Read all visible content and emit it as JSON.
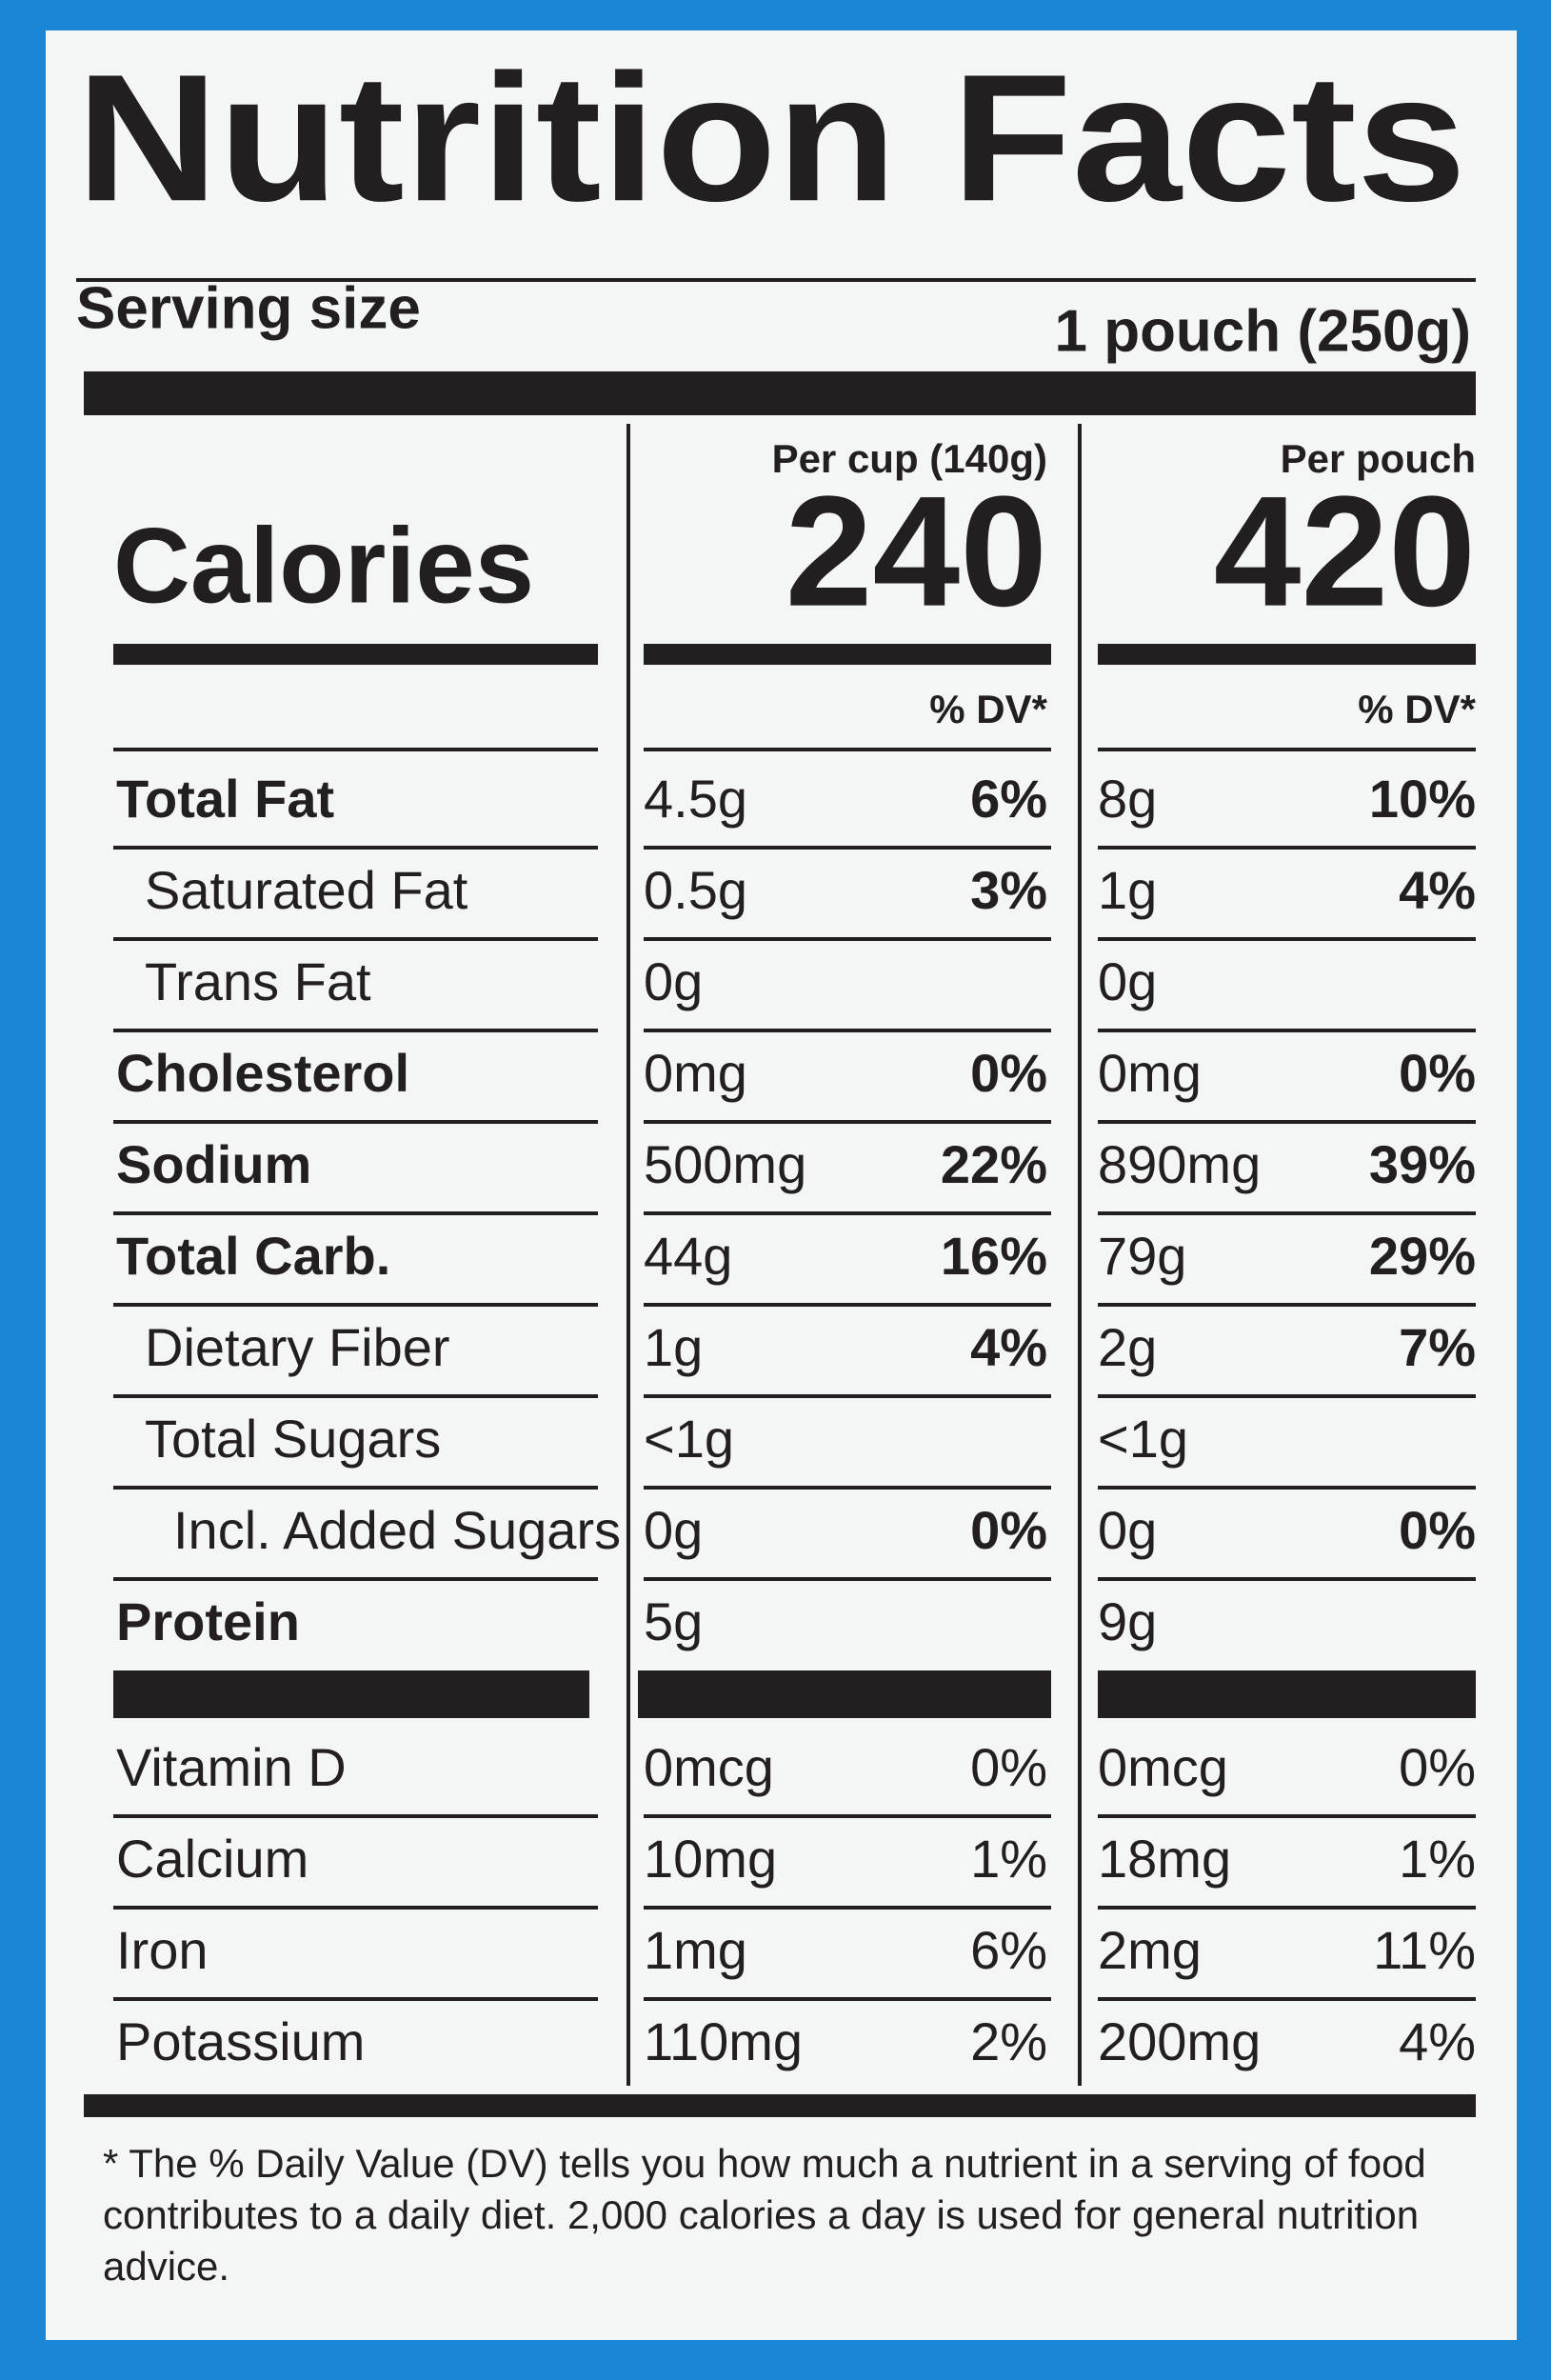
{
  "title": "Nutrition Facts",
  "serving": {
    "label": "Serving size",
    "value": "1 pouch (250g)"
  },
  "calories": {
    "label": "Calories",
    "columns": [
      {
        "header": "Per cup (140g)",
        "value": "240",
        "dv_header": "% DV*"
      },
      {
        "header": "Per pouch",
        "value": "420",
        "dv_header": "% DV*"
      }
    ]
  },
  "nutrients": [
    {
      "name": "Total Fat",
      "bold": true,
      "indent": 0,
      "per_cup": {
        "amount": "4.5g",
        "dv": "6%"
      },
      "per_pouch": {
        "amount": "8g",
        "dv": "10%"
      }
    },
    {
      "name": "Saturated Fat",
      "bold": false,
      "indent": 1,
      "per_cup": {
        "amount": "0.5g",
        "dv": "3%"
      },
      "per_pouch": {
        "amount": "1g",
        "dv": "4%"
      }
    },
    {
      "name": "Trans Fat",
      "bold": false,
      "indent": 1,
      "per_cup": {
        "amount": "0g",
        "dv": null
      },
      "per_pouch": {
        "amount": "0g",
        "dv": null
      }
    },
    {
      "name": "Cholesterol",
      "bold": true,
      "indent": 0,
      "per_cup": {
        "amount": "0mg",
        "dv": "0%"
      },
      "per_pouch": {
        "amount": "0mg",
        "dv": "0%"
      }
    },
    {
      "name": "Sodium",
      "bold": true,
      "indent": 0,
      "per_cup": {
        "amount": "500mg",
        "dv": "22%"
      },
      "per_pouch": {
        "amount": "890mg",
        "dv": "39%"
      }
    },
    {
      "name": "Total Carb.",
      "bold": true,
      "indent": 0,
      "per_cup": {
        "amount": "44g",
        "dv": "16%"
      },
      "per_pouch": {
        "amount": "79g",
        "dv": "29%"
      }
    },
    {
      "name": "Dietary Fiber",
      "bold": false,
      "indent": 1,
      "per_cup": {
        "amount": "1g",
        "dv": "4%"
      },
      "per_pouch": {
        "amount": "2g",
        "dv": "7%"
      }
    },
    {
      "name": "Total Sugars",
      "bold": false,
      "indent": 1,
      "per_cup": {
        "amount": "<1g",
        "dv": null
      },
      "per_pouch": {
        "amount": "<1g",
        "dv": null
      }
    },
    {
      "name": "Incl. Added Sugars",
      "bold": false,
      "indent": 2,
      "per_cup": {
        "amount": "0g",
        "dv": "0%"
      },
      "per_pouch": {
        "amount": "0g",
        "dv": "0%"
      }
    },
    {
      "name": "Protein",
      "bold": true,
      "indent": 0,
      "per_cup": {
        "amount": "5g",
        "dv": null
      },
      "per_pouch": {
        "amount": "9g",
        "dv": null
      }
    }
  ],
  "vitamins": [
    {
      "name": "Vitamin D",
      "per_cup": {
        "amount": "0mcg",
        "dv": "0%"
      },
      "per_pouch": {
        "amount": "0mcg",
        "dv": "0%"
      }
    },
    {
      "name": "Calcium",
      "per_cup": {
        "amount": "10mg",
        "dv": "1%"
      },
      "per_pouch": {
        "amount": "18mg",
        "dv": "1%"
      }
    },
    {
      "name": "Iron",
      "per_cup": {
        "amount": "1mg",
        "dv": "6%"
      },
      "per_pouch": {
        "amount": "2mg",
        "dv": "11%"
      }
    },
    {
      "name": "Potassium",
      "per_cup": {
        "amount": "110mg",
        "dv": "2%"
      },
      "per_pouch": {
        "amount": "200mg",
        "dv": "4%"
      }
    }
  ],
  "footnote": "* The % Daily Value (DV) tells you how much a nutrient in a serving of food contributes to a daily diet. 2,000 calories a day is used for general nutrition advice."
}
